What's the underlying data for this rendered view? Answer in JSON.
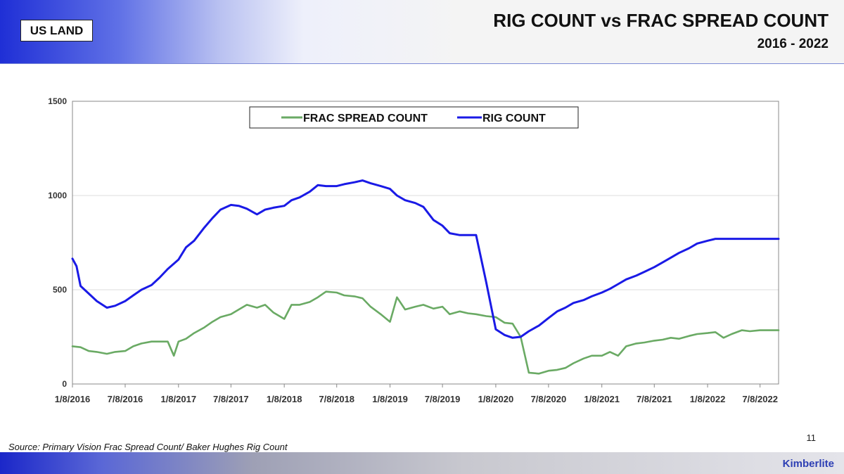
{
  "header": {
    "region_label": "US LAND",
    "title": "RIG COUNT vs FRAC SPREAD COUNT",
    "subtitle": "2016 - 2022"
  },
  "colors": {
    "frac_series": "#6aaa64",
    "rig_series": "#1a1ae6",
    "header_accent": "#1f2fd6",
    "brand": "#2d3fb4"
  },
  "chart_data": {
    "type": "line",
    "title": "",
    "xlabel": "",
    "ylabel": "",
    "ylim": [
      0,
      1500
    ],
    "y_ticks": [
      0,
      500,
      1000,
      1500
    ],
    "x_ticks": [
      "1/8/2016",
      "7/8/2016",
      "1/8/2017",
      "7/8/2017",
      "1/8/2018",
      "7/8/2018",
      "1/8/2019",
      "7/8/2019",
      "1/8/2020",
      "7/8/2020",
      "1/8/2021",
      "7/8/2021",
      "1/8/2022",
      "7/8/2022"
    ],
    "xlim": [
      "1/8/2016",
      "9/10/2022"
    ],
    "grid": "horizontal",
    "legend_position": "top-center",
    "series": [
      {
        "name": "FRAC SPREAD COUNT",
        "x": [
          "1/8/2016",
          "2/5/2016",
          "3/4/2016",
          "4/1/2016",
          "5/6/2016",
          "6/3/2016",
          "7/8/2016",
          "8/5/2016",
          "9/2/2016",
          "10/7/2016",
          "11/4/2016",
          "12/2/2016",
          "12/23/2016",
          "1/8/2017",
          "2/3/2017",
          "3/3/2017",
          "4/7/2017",
          "5/5/2017",
          "6/2/2017",
          "7/8/2017",
          "8/4/2017",
          "9/1/2017",
          "10/6/2017",
          "11/3/2017",
          "12/1/2017",
          "1/8/2018",
          "2/2/2018",
          "3/2/2018",
          "4/6/2018",
          "5/4/2018",
          "6/1/2018",
          "7/8/2018",
          "8/3/2018",
          "9/7/2018",
          "10/5/2018",
          "11/2/2018",
          "12/7/2018",
          "1/8/2019",
          "2/1/2019",
          "3/1/2019",
          "4/5/2019",
          "5/3/2019",
          "6/7/2019",
          "7/8/2019",
          "8/2/2019",
          "9/6/2019",
          "10/4/2019",
          "11/1/2019",
          "12/6/2019",
          "1/8/2020",
          "2/7/2020",
          "3/6/2020",
          "4/3/2020",
          "5/1/2020",
          "6/5/2020",
          "7/8/2020",
          "8/7/2020",
          "9/4/2020",
          "10/2/2020",
          "11/6/2020",
          "12/4/2020",
          "1/8/2021",
          "2/5/2021",
          "3/5/2021",
          "4/2/2021",
          "5/7/2021",
          "6/4/2021",
          "7/8/2021",
          "8/6/2021",
          "9/3/2021",
          "10/1/2021",
          "11/5/2021",
          "12/3/2021",
          "1/8/2022",
          "2/4/2022",
          "3/4/2022",
          "4/1/2022",
          "5/6/2022",
          "6/3/2022",
          "7/8/2022",
          "8/5/2022",
          "9/10/2022"
        ],
        "values": [
          200,
          195,
          175,
          170,
          160,
          170,
          175,
          200,
          215,
          225,
          225,
          225,
          150,
          225,
          240,
          270,
          300,
          330,
          355,
          370,
          395,
          420,
          405,
          420,
          380,
          345,
          420,
          420,
          435,
          460,
          490,
          485,
          470,
          465,
          455,
          410,
          370,
          330,
          460,
          395,
          410,
          420,
          400,
          410,
          370,
          385,
          375,
          370,
          360,
          355,
          325,
          320,
          250,
          60,
          55,
          70,
          75,
          85,
          110,
          135,
          150,
          150,
          170,
          150,
          200,
          215,
          220,
          230,
          235,
          245,
          240,
          255,
          265,
          270,
          275,
          245,
          265,
          285,
          280,
          285,
          285,
          285
        ]
      },
      {
        "name": "RIG COUNT",
        "x": [
          "1/8/2016",
          "1/22/2016",
          "2/5/2016",
          "3/4/2016",
          "4/1/2016",
          "5/6/2016",
          "6/3/2016",
          "7/8/2016",
          "8/5/2016",
          "9/2/2016",
          "10/7/2016",
          "11/4/2016",
          "12/2/2016",
          "1/8/2017",
          "2/3/2017",
          "3/3/2017",
          "4/7/2017",
          "5/5/2017",
          "6/2/2017",
          "7/8/2017",
          "8/4/2017",
          "9/1/2017",
          "10/6/2017",
          "11/3/2017",
          "12/1/2017",
          "1/8/2018",
          "2/2/2018",
          "3/2/2018",
          "4/6/2018",
          "5/4/2018",
          "6/1/2018",
          "7/8/2018",
          "8/3/2018",
          "9/7/2018",
          "10/5/2018",
          "11/2/2018",
          "12/7/2018",
          "1/8/2019",
          "2/1/2019",
          "3/1/2019",
          "4/5/2019",
          "5/3/2019",
          "6/7/2019",
          "7/8/2019",
          "8/2/2019",
          "9/6/2019",
          "10/4/2019",
          "11/1/2019",
          "12/6/2019",
          "1/8/2020",
          "2/7/2020",
          "3/6/2020",
          "4/3/2020",
          "5/1/2020",
          "6/5/2020",
          "7/8/2020",
          "8/7/2020",
          "9/4/2020",
          "10/2/2020",
          "11/6/2020",
          "12/4/2020",
          "1/8/2021",
          "2/5/2021",
          "3/5/2021",
          "4/2/2021",
          "5/7/2021",
          "6/4/2021",
          "7/8/2021",
          "8/6/2021",
          "9/3/2021",
          "10/1/2021",
          "11/5/2021",
          "12/3/2021",
          "1/8/2022",
          "2/4/2022",
          "3/4/2022",
          "4/1/2022",
          "5/6/2022",
          "6/3/2022",
          "7/8/2022",
          "8/5/2022",
          "9/10/2022"
        ],
        "values": [
          665,
          625,
          520,
          480,
          440,
          405,
          415,
          440,
          470,
          500,
          525,
          565,
          610,
          660,
          725,
          760,
          830,
          880,
          925,
          950,
          945,
          930,
          900,
          925,
          935,
          945,
          975,
          990,
          1020,
          1055,
          1050,
          1050,
          1060,
          1070,
          1080,
          1065,
          1050,
          1035,
          1000,
          975,
          960,
          940,
          870,
          840,
          800,
          790,
          790,
          790,
          540,
          290,
          260,
          245,
          250,
          280,
          310,
          350,
          385,
          405,
          430,
          445,
          465,
          485,
          505,
          530,
          555,
          575,
          595,
          620,
          645,
          670,
          695,
          720,
          745,
          760,
          770,
          770,
          770,
          770,
          770,
          770,
          770,
          770
        ]
      }
    ]
  },
  "footer": {
    "page_number": "11",
    "source": "Source: Primary Vision Frac Spread Count/ Baker Hughes Rig Count",
    "brand": "Kimberlite"
  }
}
